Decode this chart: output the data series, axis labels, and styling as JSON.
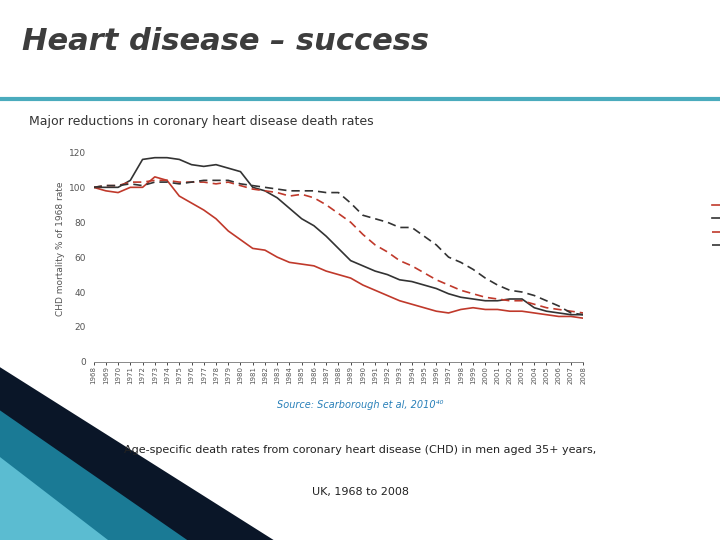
{
  "title": "Heart disease – success",
  "subtitle": "Major reductions in coronary heart disease death rates",
  "source_line1": "Source: Scarborough et al, 2010⁴⁰",
  "source_line2": "Age-specific death rates from coronary heart disease (CHD) in men aged 35+ years,",
  "source_line3": "UK, 1968 to 2008",
  "ylabel": "CHD mortality % of 1968 rate",
  "years": [
    1968,
    1969,
    1970,
    1971,
    1972,
    1973,
    1974,
    1975,
    1976,
    1977,
    1978,
    1979,
    1980,
    1981,
    1982,
    1983,
    1984,
    1985,
    1986,
    1987,
    1988,
    1989,
    1990,
    1991,
    1992,
    1993,
    1994,
    1995,
    1996,
    1997,
    1998,
    1999,
    2000,
    2001,
    2002,
    2003,
    2004,
    2005,
    2006,
    2007,
    2008
  ],
  "series_35_44": [
    100,
    98,
    97,
    100,
    100,
    106,
    104,
    95,
    91,
    87,
    82,
    75,
    70,
    65,
    64,
    60,
    57,
    56,
    55,
    52,
    50,
    48,
    44,
    41,
    38,
    35,
    33,
    31,
    29,
    28,
    30,
    31,
    30,
    30,
    29,
    29,
    28,
    27,
    26,
    26,
    25
  ],
  "series_45_54": [
    100,
    100,
    100,
    104,
    116,
    117,
    117,
    116,
    113,
    112,
    113,
    111,
    109,
    100,
    98,
    94,
    88,
    82,
    78,
    72,
    65,
    58,
    55,
    52,
    50,
    47,
    46,
    44,
    42,
    39,
    37,
    36,
    35,
    35,
    36,
    36,
    31,
    29,
    28,
    27,
    27
  ],
  "series_55_64": [
    100,
    101,
    101,
    103,
    103,
    104,
    104,
    103,
    103,
    103,
    102,
    103,
    101,
    99,
    98,
    97,
    95,
    96,
    94,
    90,
    85,
    80,
    73,
    67,
    63,
    58,
    55,
    51,
    47,
    44,
    41,
    39,
    37,
    36,
    35,
    35,
    33,
    31,
    30,
    29,
    28
  ],
  "series_65_74": [
    100,
    101,
    101,
    102,
    101,
    103,
    103,
    102,
    103,
    104,
    104,
    104,
    102,
    101,
    100,
    99,
    98,
    98,
    98,
    97,
    97,
    91,
    84,
    82,
    80,
    77,
    77,
    72,
    67,
    60,
    57,
    53,
    48,
    44,
    41,
    40,
    38,
    35,
    32,
    28,
    27
  ],
  "color_red": "#c0392b",
  "color_black": "#333333",
  "bg_color": "#ffffff",
  "title_color": "#3d3d3d",
  "subtitle_color": "#333333",
  "source_color": "#2980b9",
  "teal_line_color": "#4aabbd",
  "bottom_bg": "#f0f0f0",
  "teal_dark": "#1a6e80",
  "teal_light": "#5bbcd1",
  "nav_dark": "#0d0d1a",
  "ylim": [
    0,
    130
  ],
  "yticks": [
    0,
    20,
    40,
    60,
    80,
    100,
    120
  ]
}
